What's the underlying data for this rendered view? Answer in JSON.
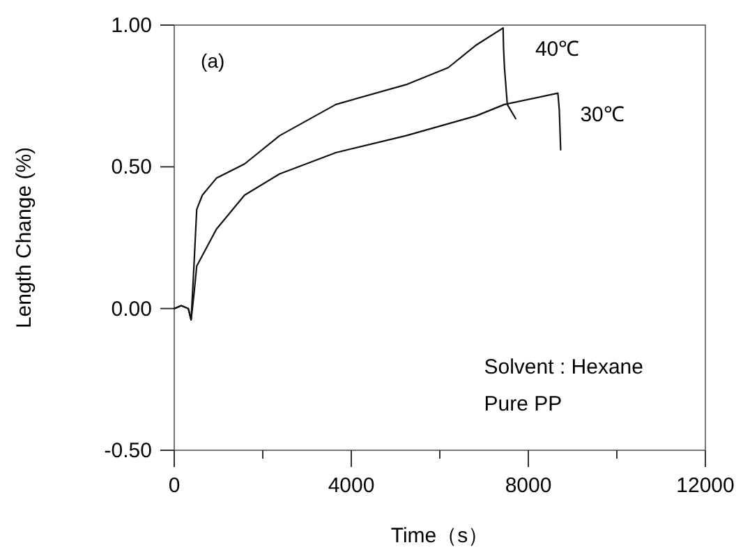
{
  "chart_data": {
    "type": "line",
    "xlabel": "Time（s）",
    "ylabel": "Length Change (%)",
    "xlim": [
      0,
      12000
    ],
    "ylim": [
      -0.5,
      1.0
    ],
    "xticks": [
      0,
      {
        "value": 2000,
        "label": null
      },
      4000,
      {
        "value": 6000,
        "label": null
      },
      8000,
      {
        "value": 10000,
        "label": null
      },
      12000
    ],
    "yticks": [
      {
        "value": -0.5,
        "label": "-0.50"
      },
      {
        "value": 0,
        "label": "0.00"
      },
      {
        "value": 0.5,
        "label": "0.50"
      },
      {
        "value": 1,
        "label": "1.00"
      }
    ],
    "grid": false,
    "marker": "none",
    "line_style": "solid",
    "series": [
      {
        "name": "40℃",
        "color": "#111111",
        "x": [
          0,
          159,
          318,
          381,
          445,
          508,
          635,
          953,
          1588,
          2381,
          3651,
          5239,
          6191,
          6826,
          7430,
          7440,
          7461,
          7525,
          7715
        ],
        "values": [
          0,
          0.01,
          0,
          -0.04,
          0.15,
          0.35,
          0.4,
          0.46,
          0.51,
          0.61,
          0.72,
          0.79,
          0.85,
          0.93,
          0.99,
          0.92,
          0.85,
          0.72,
          0.67
        ]
      },
      {
        "name": "30℃",
        "color": "#111111",
        "x": [
          0,
          159,
          318,
          381,
          445,
          508,
          953,
          1588,
          2381,
          3651,
          5239,
          6826,
          7461,
          8668,
          8700,
          8731
        ],
        "values": [
          0,
          0.01,
          0,
          -0.04,
          0.05,
          0.15,
          0.28,
          0.4,
          0.475,
          0.55,
          0.61,
          0.68,
          0.72,
          0.76,
          0.7,
          0.56
        ]
      }
    ],
    "annotations": [
      "(a)",
      "Solvent : Hexane",
      "Pure PP"
    ]
  }
}
